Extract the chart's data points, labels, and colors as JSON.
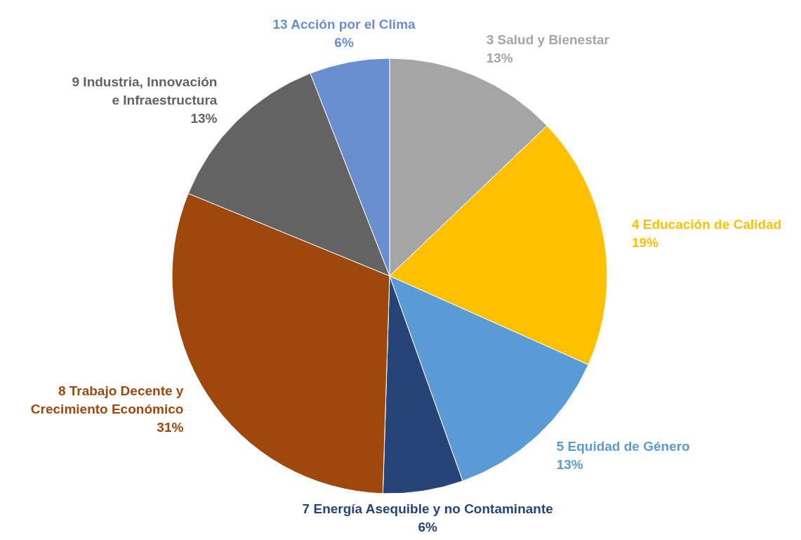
{
  "chart_data": {
    "type": "pie",
    "categories": [
      "3 Salud y Bienestar",
      "4 Educación de Calidad",
      "5 Equidad de Género",
      "7 Energía Asequible y no Contaminante",
      "8 Trabajo Decente y\nCrecimiento Económico",
      "9 Industria, Innovación\ne Infraestructura",
      "13 Acción por el Clima"
    ],
    "values": [
      13,
      19,
      13,
      6,
      31,
      13,
      6
    ],
    "value_labels": [
      "13%",
      "19%",
      "13%",
      "6%",
      "31%",
      "13%",
      "6%"
    ],
    "colors": [
      "#a5a5a5",
      "#ffc000",
      "#5b9bd5",
      "#264478",
      "#9e480e",
      "#636363",
      "#698ed0"
    ],
    "legend": false
  }
}
